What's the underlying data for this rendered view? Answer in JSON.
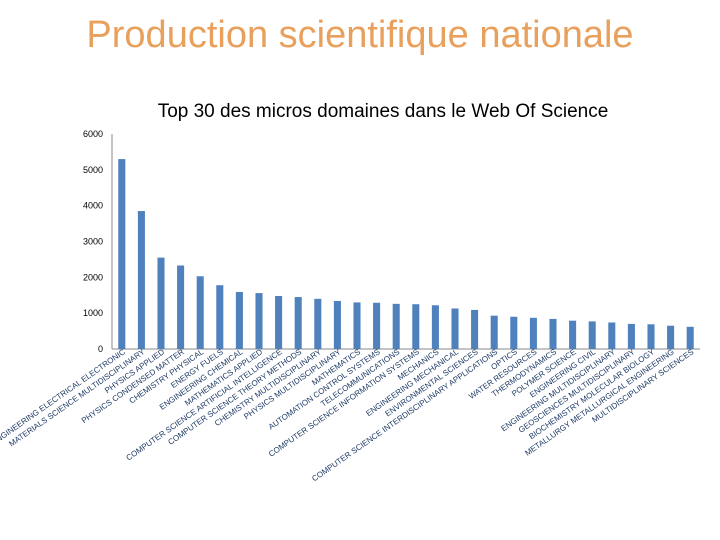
{
  "header": {
    "title": "Production scientifique nationale"
  },
  "chart_data": {
    "type": "bar",
    "title": "Top 30 des micros domaines dans le Web Of Science",
    "xlabel": "",
    "ylabel": "",
    "ylim": [
      0,
      6000
    ],
    "yticks": [
      0,
      1000,
      2000,
      3000,
      4000,
      5000,
      6000
    ],
    "grid": false,
    "bar_color": "#4f81bd",
    "categories": [
      "ENGINEERING ELECTRICAL ELECTRONIC",
      "MATERIALS SCIENCE MULTIDISCIPLINARY",
      "PHYSICS APPLIED",
      "PHYSICS CONDENSED MATTER",
      "CHEMISTRY PHYSICAL",
      "ENERGY FUELS",
      "ENGINEERING CHEMICAL",
      "MATHEMATICS APPLIED",
      "COMPUTER SCIENCE ARTIFICIAL INTELLIGENCE",
      "COMPUTER SCIENCE THEORY METHODS",
      "CHEMISTRY MULTIDISCIPLINARY",
      "PHYSICS MULTIDISCIPLINARY",
      "MATHEMATICS",
      "AUTOMATION CONTROL SYSTEMS",
      "TELECOMMUNICATIONS",
      "COMPUTER SCIENCE INFORMATION SYSTEMS",
      "MECHANICS",
      "ENGINEERING MECHANICAL",
      "ENVIRONMENTAL SCIENCES",
      "COMPUTER SCIENCE INTERDISCIPLINARY APPLICATIONS",
      "OPTICS",
      "WATER RESOURCES",
      "THERMODYNAMICS",
      "POLYMER SCIENCE",
      "ENGINEERING CIVIL",
      "ENGINEERING MULTIDISCIPLINARY",
      "GEOSCIENCES MULTIDISCIPLINARY",
      "BIOCHEMISTRY MOLECULAR BIOLOGY",
      "METALLURGY METALLURGICAL ENGINEERING",
      "MULTIDISCIPLINARY SCIENCES"
    ],
    "values": [
      5300,
      3850,
      2550,
      2330,
      2030,
      1780,
      1590,
      1560,
      1480,
      1450,
      1400,
      1340,
      1300,
      1290,
      1260,
      1250,
      1220,
      1130,
      1090,
      930,
      900,
      870,
      840,
      790,
      770,
      740,
      700,
      690,
      650,
      620
    ]
  }
}
